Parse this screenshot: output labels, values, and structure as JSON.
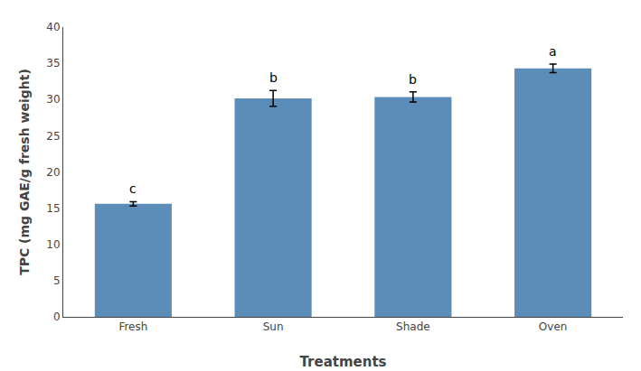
{
  "chart_data": {
    "type": "bar",
    "categories": [
      "Fresh",
      "Sun",
      "Shade",
      "Oven"
    ],
    "values": [
      15.6,
      30.15,
      30.35,
      34.3
    ],
    "errors": [
      0.3,
      1.1,
      0.7,
      0.6
    ],
    "annotations": [
      "c",
      "b",
      "b",
      "a"
    ],
    "color": "#5b8db8",
    "xlabel": "Treatments",
    "ylabel": "TPC (mg GAE/g fresh weight)",
    "ylim": [
      0,
      40
    ],
    "yticks": [
      0,
      5,
      10,
      15,
      20,
      25,
      30,
      35,
      40
    ],
    "grid": false
  }
}
